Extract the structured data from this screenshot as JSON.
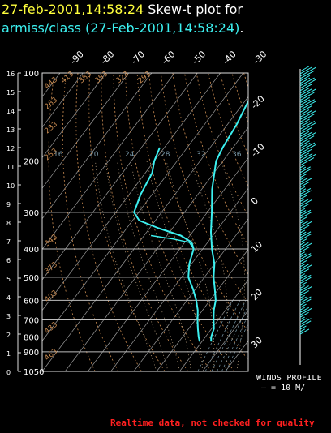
{
  "title": {
    "line1_date": "27-feb-2001,14:58:24",
    "line1_text": "Skew-t plot for",
    "line2_text": "armiss/class (27-Feb-2001,14:58:24)",
    "line2_period": "."
  },
  "colors": {
    "date": "#ffff3c",
    "title_text": "#ffffff",
    "station": "#3cf0f0",
    "sounding": "#3cf0f0",
    "isotherm": "#9a9a9a",
    "isobar": "#bdbdbd",
    "dry_adiabat": "#c88a50",
    "moist_adiabat": "#b8a080",
    "mixing_ratio": "#7a9aaa",
    "warning": "#ff2020"
  },
  "chart_data": {
    "type": "line",
    "title": "Skew-t plot for armiss/class (27-Feb-2001,14:58:24).",
    "pressure_levels": [
      100,
      200,
      300,
      400,
      500,
      600,
      700,
      800,
      900,
      1050
    ],
    "pressure_labels": [
      "100",
      "200",
      "300",
      "400",
      "500",
      "600",
      "700",
      "800",
      "900",
      "1050"
    ],
    "height_ticks_km": [
      "16",
      "15",
      "14",
      "13",
      "12",
      "11",
      "10",
      "9",
      "8",
      "7",
      "6",
      "5",
      "4",
      "3",
      "2",
      "1",
      "0"
    ],
    "top_temp_labels": [
      "-90",
      "-80",
      "-70",
      "-60",
      "-50",
      "-40",
      "-30"
    ],
    "right_temp_labels": [
      "-20",
      "-10",
      "0",
      "10",
      "20",
      "30"
    ],
    "dry_adiabat_labels": [
      "443",
      "413",
      "383",
      "353",
      "323",
      "293",
      "263",
      "233",
      "253",
      "343",
      "373",
      "403",
      "433",
      "463"
    ],
    "mixing_ratio_labels": [
      "16",
      "20",
      "24",
      "28",
      "32",
      "36"
    ],
    "temperature": [
      {
        "p": 830,
        "t": 4.0
      },
      {
        "p": 800,
        "t": 2.5
      },
      {
        "p": 750,
        "t": 1.0
      },
      {
        "p": 700,
        "t": -2.0
      },
      {
        "p": 650,
        "t": -5.0
      },
      {
        "p": 600,
        "t": -7.5
      },
      {
        "p": 550,
        "t": -11.5
      },
      {
        "p": 500,
        "t": -16.0
      },
      {
        "p": 450,
        "t": -20.0
      },
      {
        "p": 400,
        "t": -26.0
      },
      {
        "p": 350,
        "t": -32.0
      },
      {
        "p": 300,
        "t": -38.0
      },
      {
        "p": 250,
        "t": -45.5
      },
      {
        "p": 200,
        "t": -53.0
      },
      {
        "p": 180,
        "t": -54.5
      },
      {
        "p": 150,
        "t": -56.0
      },
      {
        "p": 125,
        "t": -58.5
      },
      {
        "p": 110,
        "t": -60.0
      },
      {
        "p": 100,
        "t": -60.5
      }
    ],
    "dewpoint": [
      {
        "p": 830,
        "t": -1.0
      },
      {
        "p": 800,
        "t": -3.0
      },
      {
        "p": 750,
        "t": -6.0
      },
      {
        "p": 700,
        "t": -9.0
      },
      {
        "p": 650,
        "t": -12.0
      },
      {
        "p": 600,
        "t": -16.0
      },
      {
        "p": 550,
        "t": -21.0
      },
      {
        "p": 500,
        "t": -27.0
      },
      {
        "p": 450,
        "t": -31.0
      },
      {
        "p": 400,
        "t": -34.0
      },
      {
        "p": 380,
        "t": -37.0
      },
      {
        "p": 360,
        "t": -44.0
      },
      {
        "p": 340,
        "t": -56.0
      },
      {
        "p": 320,
        "t": -67.0
      },
      {
        "p": 300,
        "t": -72.0
      },
      {
        "p": 260,
        "t": -75.0
      },
      {
        "p": 220,
        "t": -77.0
      },
      {
        "p": 200,
        "t": -80.0
      },
      {
        "p": 180,
        "t": -82.0
      }
    ],
    "extra_trace": [
      {
        "p": 360,
        "t": -57.0
      },
      {
        "p": 370,
        "t": -46.0
      },
      {
        "p": 380,
        "t": -38.0
      },
      {
        "p": 400,
        "t": -34.0
      }
    ],
    "xlabel": "",
    "ylabel": "",
    "ylim": [
      1050,
      100
    ],
    "xlim_at_surface": [
      -60,
      30
    ]
  },
  "winds_profile": {
    "label": "WINDS PROFILE",
    "scale": "— = 10 M/",
    "barb_count": 110
  },
  "footer": {
    "quality_note": "Realtime data, not checked for quality"
  }
}
